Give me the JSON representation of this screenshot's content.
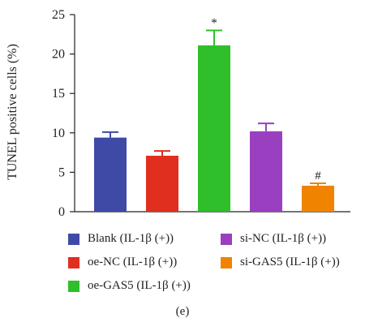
{
  "chart_data": {
    "type": "bar",
    "ylabel": "TUNEL positive cells (%)",
    "ylim": [
      0,
      25
    ],
    "yticks": [
      0,
      5,
      10,
      15,
      20,
      25
    ],
    "categories": [
      "Blank (IL-1β (+))",
      "oe-NC (IL-1β (+))",
      "oe-GAS5 (IL-1β (+))",
      "si-NC (IL-1β (+))",
      "si-GAS5 (IL-1β (+))"
    ],
    "values": [
      9.4,
      7.1,
      21.1,
      10.2,
      3.3
    ],
    "errors": [
      0.7,
      0.6,
      1.9,
      1.0,
      0.3
    ],
    "colors": [
      "#3f4aa6",
      "#e02f1e",
      "#2fbf2a",
      "#9a3fbf",
      "#f08300"
    ],
    "annotations": [
      "",
      "",
      "*",
      "",
      "#"
    ],
    "grid": false,
    "legend_position": "bottom"
  },
  "legend": [
    {
      "label": "Blank (IL-1β (+))",
      "color": "#3f4aa6"
    },
    {
      "label": "si-NC (IL-1β (+))",
      "color": "#9a3fbf"
    },
    {
      "label": "oe-NC (IL-1β (+))",
      "color": "#e02f1e"
    },
    {
      "label": "si-GAS5 (IL-1β (+))",
      "color": "#f08300"
    },
    {
      "label": "oe-GAS5 (IL-1β (+))",
      "color": "#2fbf2a"
    }
  ],
  "panel_label": "(e)"
}
